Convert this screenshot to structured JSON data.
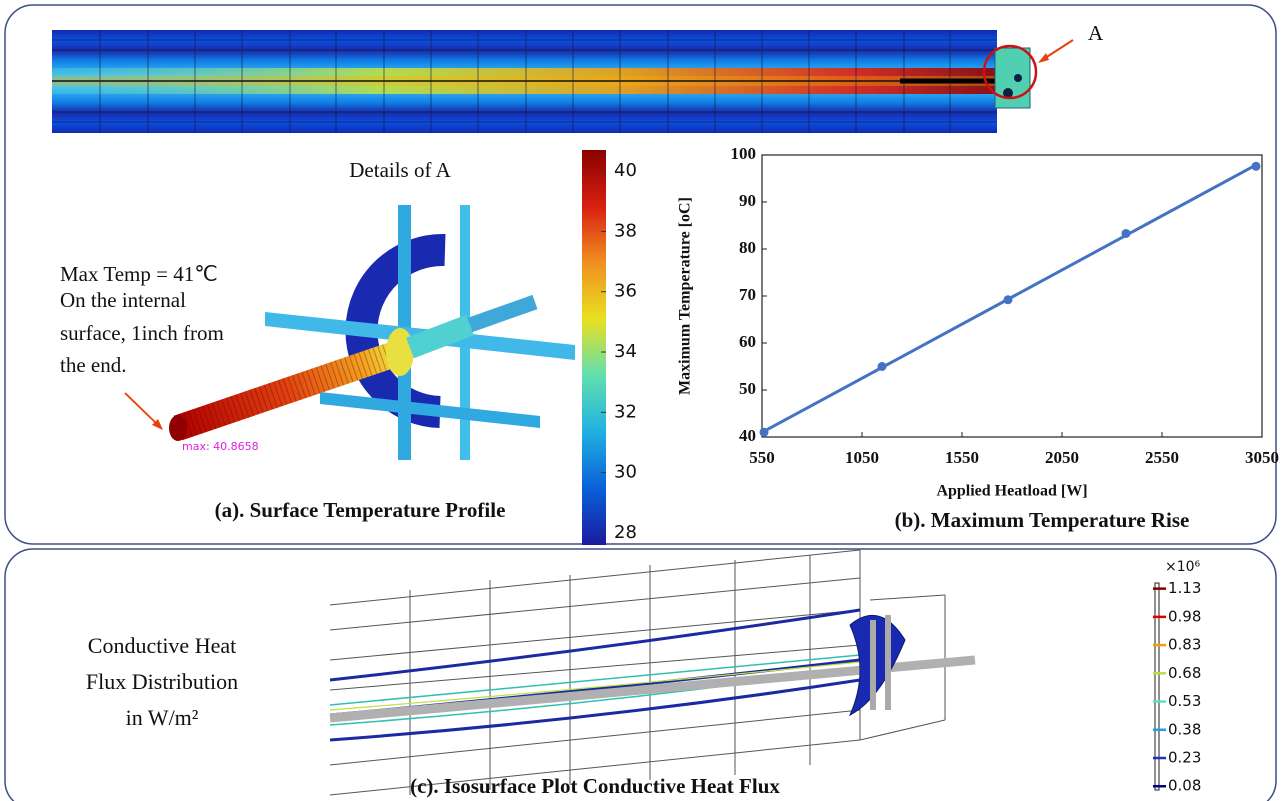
{
  "figure": {
    "label_A": "A",
    "details_title": "Details of A",
    "max_temp": "Max Temp = 41℃",
    "note_lines": [
      "On the internal",
      "surface, 1inch from",
      "the end."
    ],
    "max_marker": "max: 40.8658",
    "caption_a": "(a).  Surface Temperature Profile",
    "caption_b": "(b).  Maximum Temperature Rise",
    "caption_c": "(c).  Isosurface Plot Conductive Heat Flux",
    "flux_lines": [
      "Conductive Heat",
      "Flux Distribution",
      "in W/m²"
    ]
  },
  "chart_data": [
    {
      "type": "colorbar",
      "ylim": [
        27.6,
        40.7
      ],
      "yticks": [
        28,
        30,
        32,
        34,
        36,
        38,
        40
      ],
      "colors": [
        "#1a1aa0",
        "#0a60d8",
        "#20b0e0",
        "#60e0b0",
        "#e8e020",
        "#f09020",
        "#d82010",
        "#8a0000"
      ]
    },
    {
      "type": "scatter",
      "x_label": "Applied Heatload [W]",
      "y_label": "Maximum Temperature [oC]",
      "x": [
        560,
        1150,
        1780,
        2370,
        3020
      ],
      "values": [
        41,
        55,
        69.2,
        83.3,
        97.6
      ],
      "color": "#4472c4",
      "xlim": [
        550,
        3050
      ],
      "xticks": [
        550,
        1050,
        1550,
        2050,
        2550,
        3050
      ],
      "ylim": [
        40,
        100
      ],
      "yticks": [
        40,
        50,
        60,
        70,
        80,
        90,
        100
      ],
      "trendline": true
    },
    {
      "type": "colorbar",
      "multiplier": "×10⁶",
      "ylim": [
        0.06,
        1.16
      ],
      "yticks": [
        0.08,
        0.23,
        0.38,
        0.53,
        0.68,
        0.83,
        0.98,
        1.13
      ],
      "tick_colors": [
        "#000080",
        "#2030c0",
        "#20a0e0",
        "#60e0c0",
        "#b8e040",
        "#f0a000",
        "#e00000",
        "#800000"
      ]
    }
  ]
}
